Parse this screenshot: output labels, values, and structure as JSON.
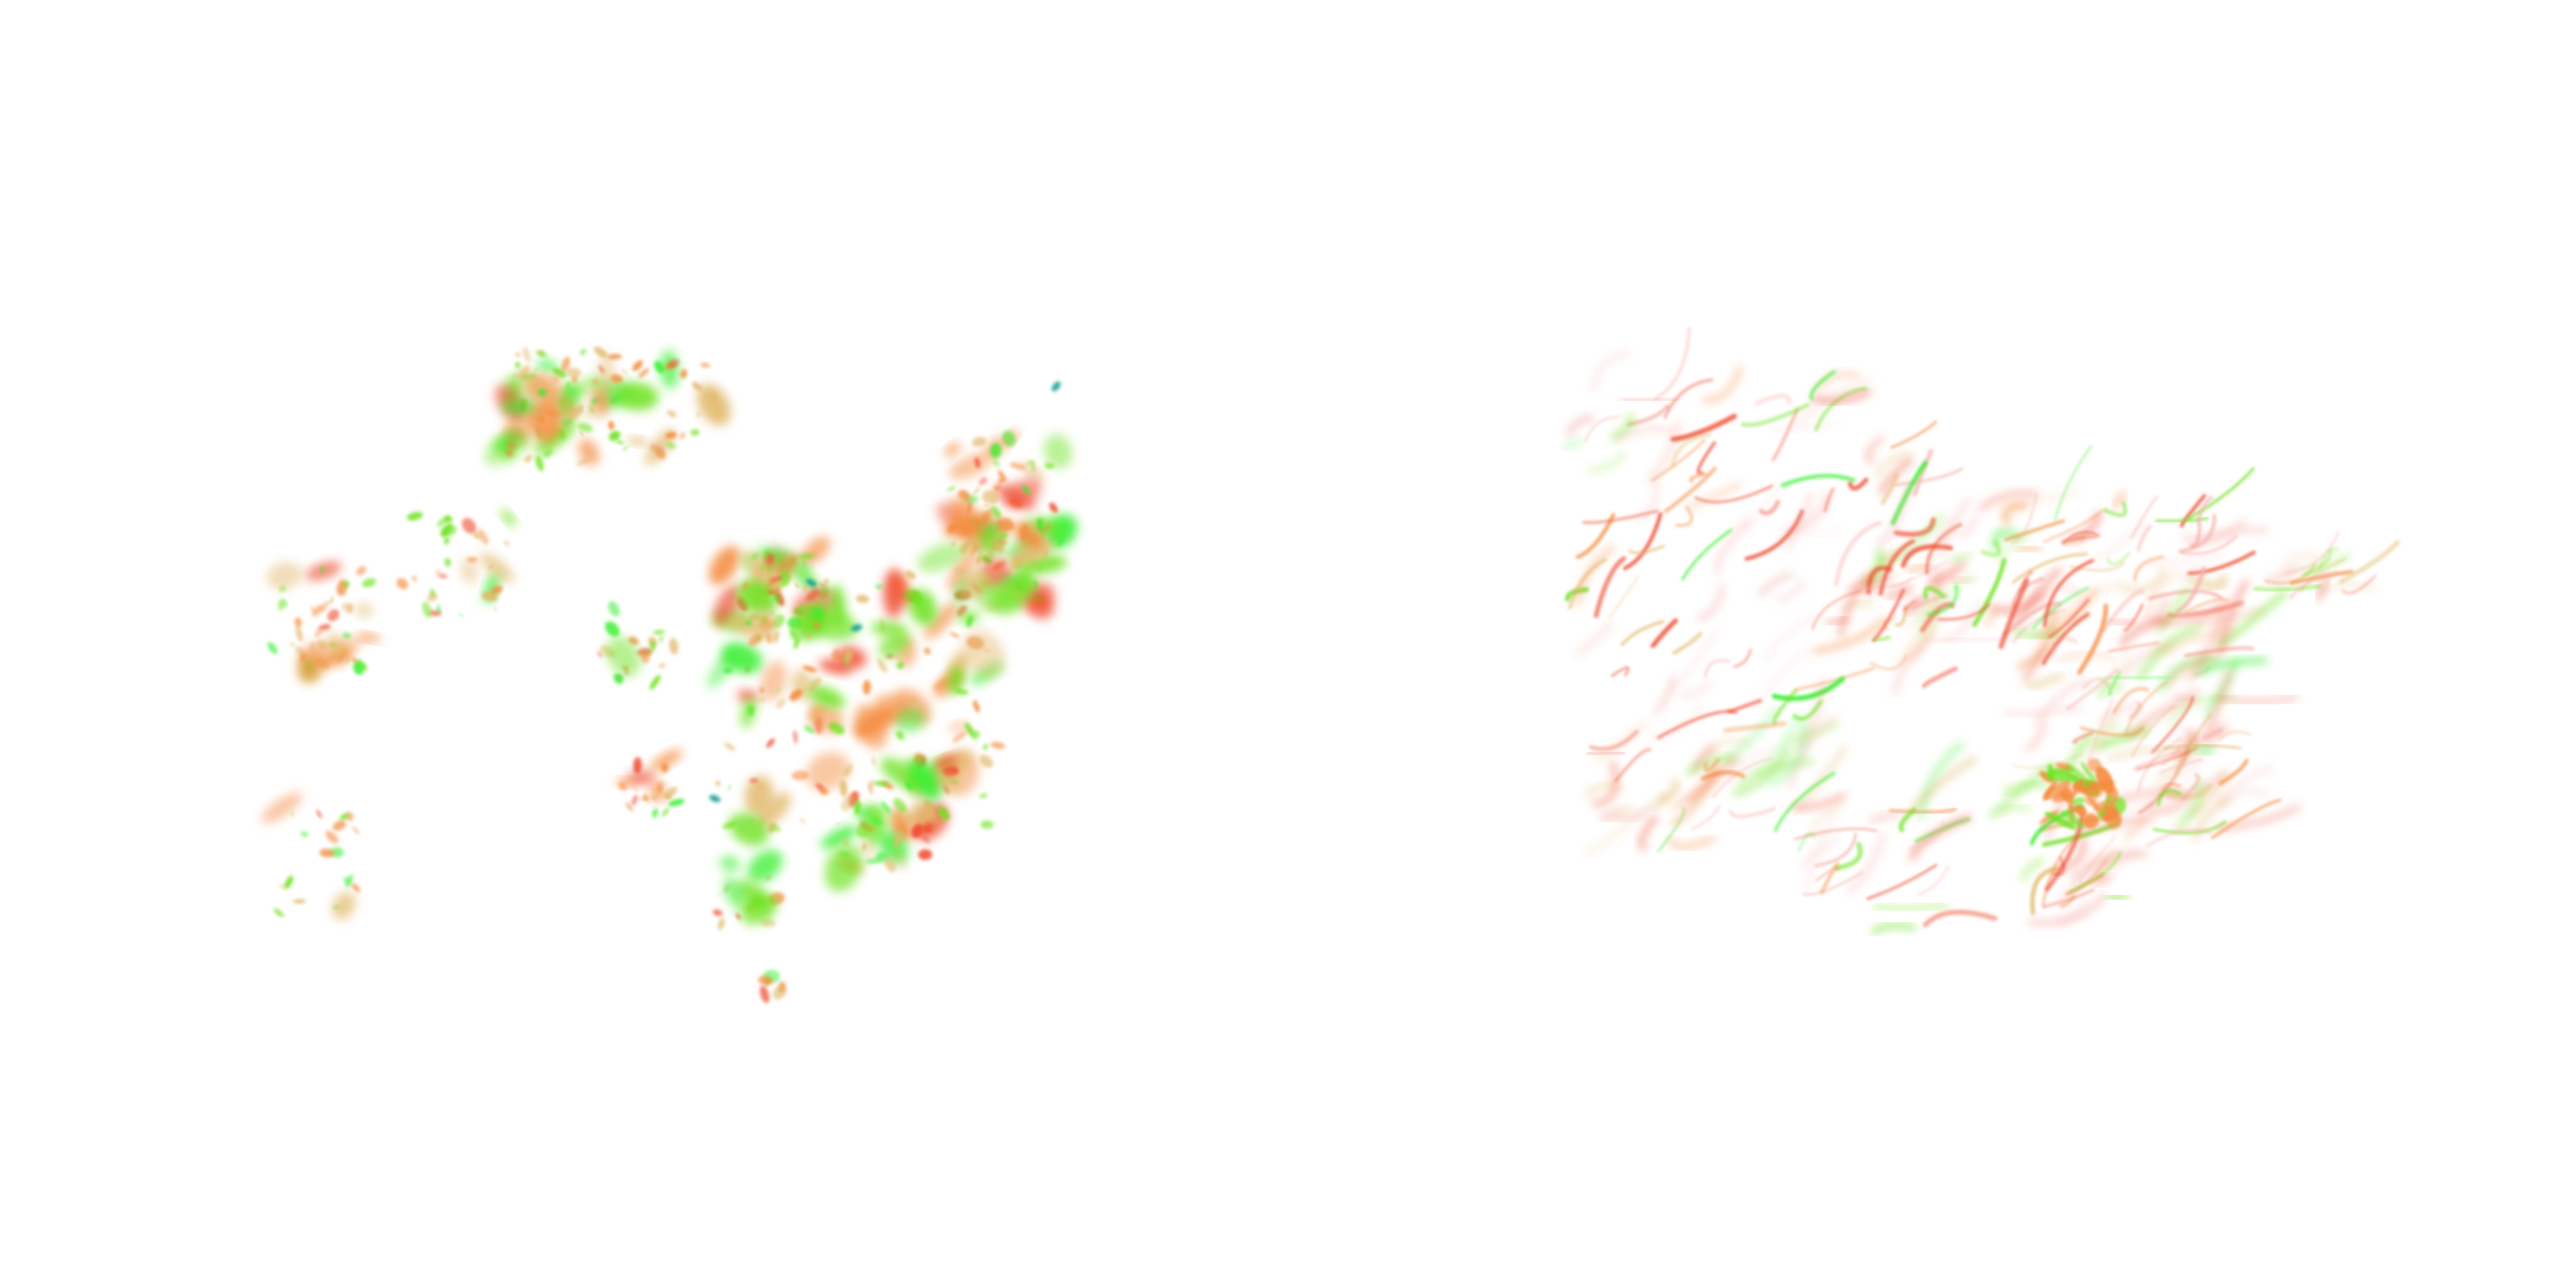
{
  "palette": {
    "background": "#ffffff",
    "red": "#ef4a2e",
    "orange": "#f58a3c",
    "tan": "#e2b86a",
    "green": "#6ee21e",
    "bright_green": "#33ee2a",
    "teal": "#1aa090",
    "pink": "#f6b4ae"
  },
  "panels": [
    {
      "style": "blobby-clusters"
    },
    {
      "style": "filamentary-streaks"
    }
  ]
}
